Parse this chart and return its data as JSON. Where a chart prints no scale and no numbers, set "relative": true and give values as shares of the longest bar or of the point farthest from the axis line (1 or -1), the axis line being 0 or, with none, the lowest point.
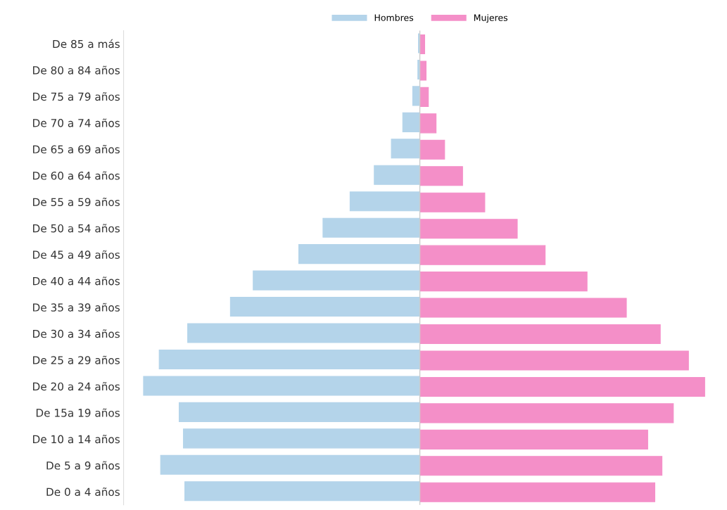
{
  "chart_data": {
    "type": "bar",
    "orientation": "horizontal",
    "relative": true,
    "legend": "top",
    "grid": false,
    "categories": [
      "De 85 a más",
      "De 80 a 84 años",
      "De 75 a 79 años",
      "De 70 a 74 años",
      "De 65 a 69 años",
      "De 60 a 64 años",
      "De 55 a 59 años",
      "De 50 a 54 años",
      "De 45 a 49 años",
      "De 40 a 44 años",
      "De 35 a 39 años",
      "De 30 a 34 años",
      "De 25 a 29 años",
      "De 20 a 24 años",
      "De 15a 19 años",
      "De 10 a 14 años",
      "De 5 a 9 años",
      "De 0 a 4 años"
    ],
    "series": [
      {
        "name": "Hombres",
        "color": "#b4d4ea",
        "values": [
          -0.005,
          -0.007,
          -0.025,
          -0.06,
          -0.1,
          -0.16,
          -0.245,
          -0.34,
          -0.425,
          -0.585,
          -0.665,
          -0.815,
          -0.915,
          -0.97,
          -0.845,
          -0.83,
          -0.91,
          -0.825
        ]
      },
      {
        "name": "Mujeres",
        "color": "#f48fc8",
        "values": [
          0.017,
          0.022,
          0.03,
          0.057,
          0.087,
          0.15,
          0.228,
          0.342,
          0.44,
          0.587,
          0.725,
          0.844,
          0.943,
          1,
          0.89,
          0.8,
          0.85,
          0.825
        ]
      }
    ]
  }
}
